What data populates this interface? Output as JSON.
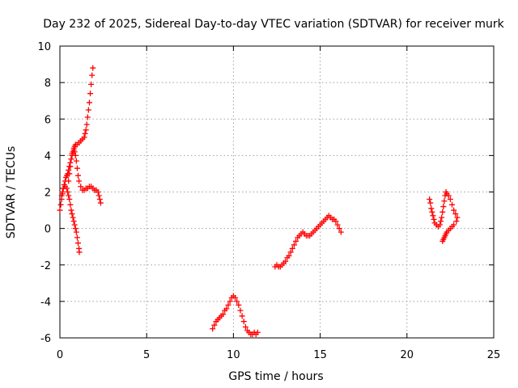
{
  "chart_data": {
    "type": "scatter",
    "title": "Day 232 of 2025, Sidereal Day-to-day VTEC variation (SDTVAR) for receiver murk",
    "xlabel": "GPS time / hours",
    "ylabel": "SDTVAR / TECUs",
    "xlim": [
      0,
      25
    ],
    "ylim": [
      -6,
      10
    ],
    "xticks": [
      0,
      5,
      10,
      15,
      20,
      25
    ],
    "yticks": [
      -6,
      -4,
      -2,
      0,
      2,
      4,
      6,
      8,
      10
    ],
    "grid": true,
    "marker": "+",
    "color": "#ff0000",
    "series": [
      {
        "points": [
          [
            0.0,
            1.0
          ],
          [
            0.05,
            1.3
          ],
          [
            0.1,
            1.6
          ],
          [
            0.15,
            1.9
          ],
          [
            0.2,
            2.2
          ],
          [
            0.25,
            2.4
          ],
          [
            0.3,
            2.6
          ],
          [
            0.35,
            2.8
          ],
          [
            0.4,
            2.9
          ],
          [
            0.45,
            3.0
          ],
          [
            0.5,
            3.2
          ],
          [
            0.55,
            3.4
          ],
          [
            0.6,
            3.6
          ],
          [
            0.65,
            3.8
          ],
          [
            0.7,
            4.0
          ],
          [
            0.75,
            4.2
          ],
          [
            0.8,
            4.4
          ],
          [
            0.85,
            4.5
          ],
          [
            0.9,
            4.6
          ],
          [
            1.0,
            4.6
          ],
          [
            1.1,
            4.7
          ],
          [
            1.2,
            4.8
          ],
          [
            1.3,
            4.9
          ],
          [
            1.4,
            5.0
          ],
          [
            1.45,
            5.2
          ],
          [
            1.5,
            5.4
          ],
          [
            1.55,
            5.7
          ],
          [
            1.6,
            6.1
          ],
          [
            1.65,
            6.5
          ],
          [
            1.7,
            6.9
          ],
          [
            1.75,
            7.4
          ],
          [
            1.8,
            7.9
          ],
          [
            1.85,
            8.4
          ],
          [
            1.9,
            8.8
          ]
        ]
      },
      {
        "points": [
          [
            0.1,
            1.8
          ],
          [
            0.15,
            2.0
          ],
          [
            0.2,
            2.2
          ],
          [
            0.3,
            2.3
          ],
          [
            0.4,
            2.2
          ],
          [
            0.45,
            2.0
          ],
          [
            0.5,
            1.8
          ],
          [
            0.55,
            1.6
          ],
          [
            0.6,
            1.3
          ],
          [
            0.65,
            1.0
          ],
          [
            0.7,
            0.8
          ],
          [
            0.75,
            0.6
          ],
          [
            0.8,
            0.4
          ],
          [
            0.85,
            0.2
          ],
          [
            0.9,
            0.0
          ],
          [
            0.95,
            -0.2
          ],
          [
            1.0,
            -0.5
          ],
          [
            1.05,
            -0.8
          ],
          [
            1.1,
            -1.1
          ],
          [
            1.12,
            -1.3
          ]
        ]
      },
      {
        "points": [
          [
            0.5,
            2.6
          ],
          [
            0.55,
            3.0
          ],
          [
            0.6,
            3.4
          ],
          [
            0.65,
            3.8
          ],
          [
            0.7,
            4.1
          ],
          [
            0.8,
            4.3
          ],
          [
            0.85,
            4.2
          ],
          [
            0.9,
            4.0
          ],
          [
            0.95,
            3.7
          ],
          [
            1.0,
            3.3
          ],
          [
            1.05,
            2.9
          ],
          [
            1.1,
            2.6
          ],
          [
            1.2,
            2.3
          ],
          [
            1.3,
            2.1
          ],
          [
            1.4,
            2.1
          ],
          [
            1.5,
            2.2
          ],
          [
            1.6,
            2.2
          ],
          [
            1.7,
            2.3
          ],
          [
            1.8,
            2.3
          ],
          [
            1.9,
            2.2
          ],
          [
            2.0,
            2.1
          ],
          [
            2.1,
            2.1
          ],
          [
            2.2,
            2.0
          ],
          [
            2.25,
            1.8
          ],
          [
            2.3,
            1.6
          ],
          [
            2.35,
            1.4
          ]
        ]
      },
      {
        "points": [
          [
            8.8,
            -5.5
          ],
          [
            8.9,
            -5.3
          ],
          [
            9.0,
            -5.1
          ],
          [
            9.1,
            -5.0
          ],
          [
            9.2,
            -4.9
          ],
          [
            9.3,
            -4.8
          ],
          [
            9.4,
            -4.7
          ],
          [
            9.5,
            -4.5
          ],
          [
            9.6,
            -4.4
          ],
          [
            9.7,
            -4.2
          ],
          [
            9.8,
            -4.0
          ],
          [
            9.9,
            -3.8
          ],
          [
            10.0,
            -3.7
          ],
          [
            10.1,
            -3.8
          ],
          [
            10.2,
            -4.0
          ],
          [
            10.3,
            -4.2
          ],
          [
            10.4,
            -4.5
          ],
          [
            10.5,
            -4.8
          ],
          [
            10.6,
            -5.1
          ],
          [
            10.7,
            -5.4
          ],
          [
            10.8,
            -5.6
          ],
          [
            10.9,
            -5.7
          ],
          [
            11.0,
            -5.8
          ],
          [
            11.1,
            -5.8
          ],
          [
            11.2,
            -5.7
          ],
          [
            11.3,
            -5.8
          ],
          [
            11.4,
            -5.7
          ]
        ]
      },
      {
        "points": [
          [
            12.4,
            -2.1
          ],
          [
            12.5,
            -2.0
          ],
          [
            12.6,
            -2.1
          ],
          [
            12.7,
            -2.1
          ],
          [
            12.8,
            -2.0
          ],
          [
            12.9,
            -1.9
          ],
          [
            13.0,
            -1.8
          ],
          [
            13.1,
            -1.6
          ],
          [
            13.2,
            -1.5
          ],
          [
            13.3,
            -1.3
          ],
          [
            13.4,
            -1.1
          ],
          [
            13.5,
            -0.9
          ],
          [
            13.6,
            -0.7
          ],
          [
            13.7,
            -0.5
          ],
          [
            13.8,
            -0.4
          ],
          [
            13.9,
            -0.3
          ],
          [
            14.0,
            -0.2
          ],
          [
            14.1,
            -0.3
          ],
          [
            14.2,
            -0.4
          ],
          [
            14.3,
            -0.4
          ],
          [
            14.4,
            -0.4
          ],
          [
            14.5,
            -0.3
          ],
          [
            14.6,
            -0.2
          ],
          [
            14.7,
            -0.1
          ],
          [
            14.8,
            0.0
          ],
          [
            14.9,
            0.1
          ],
          [
            15.0,
            0.2
          ],
          [
            15.1,
            0.3
          ],
          [
            15.2,
            0.4
          ],
          [
            15.3,
            0.5
          ],
          [
            15.4,
            0.6
          ],
          [
            15.5,
            0.7
          ],
          [
            15.6,
            0.6
          ],
          [
            15.7,
            0.5
          ],
          [
            15.8,
            0.5
          ],
          [
            15.9,
            0.4
          ],
          [
            16.0,
            0.2
          ],
          [
            16.1,
            0.0
          ],
          [
            16.2,
            -0.2
          ]
        ]
      },
      {
        "points": [
          [
            21.3,
            1.6
          ],
          [
            21.35,
            1.4
          ],
          [
            21.4,
            1.1
          ],
          [
            21.45,
            0.9
          ],
          [
            21.5,
            0.7
          ],
          [
            21.55,
            0.5
          ],
          [
            21.6,
            0.3
          ],
          [
            21.7,
            0.2
          ],
          [
            21.8,
            0.1
          ],
          [
            21.9,
            0.2
          ],
          [
            21.95,
            0.4
          ],
          [
            22.0,
            0.6
          ],
          [
            22.05,
            0.9
          ],
          [
            22.1,
            1.2
          ],
          [
            22.15,
            1.5
          ],
          [
            22.2,
            1.8
          ],
          [
            22.25,
            2.0
          ],
          [
            22.3,
            1.9
          ],
          [
            22.4,
            1.8
          ],
          [
            22.5,
            1.6
          ],
          [
            22.6,
            1.3
          ],
          [
            22.7,
            1.0
          ],
          [
            22.8,
            0.8
          ],
          [
            22.9,
            0.6
          ],
          [
            22.85,
            0.4
          ],
          [
            22.7,
            0.2
          ],
          [
            22.6,
            0.1
          ],
          [
            22.5,
            0.0
          ],
          [
            22.4,
            -0.1
          ],
          [
            22.3,
            -0.2
          ],
          [
            22.25,
            -0.3
          ],
          [
            22.2,
            -0.4
          ],
          [
            22.15,
            -0.5
          ],
          [
            22.1,
            -0.6
          ],
          [
            22.05,
            -0.7
          ]
        ]
      }
    ]
  }
}
